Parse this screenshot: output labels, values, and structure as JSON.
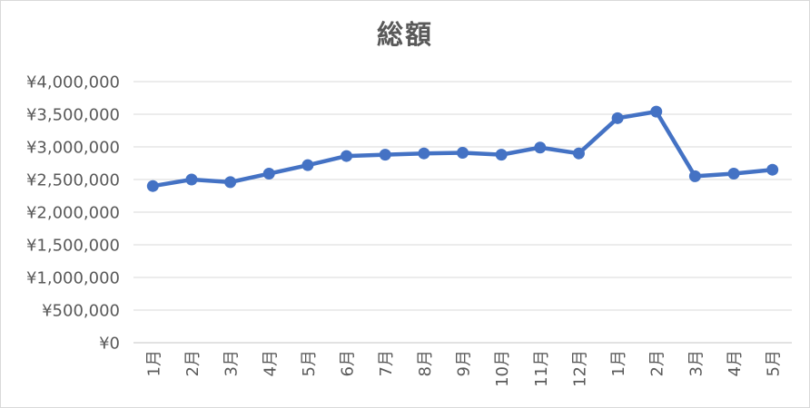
{
  "chart_data": {
    "type": "line",
    "title": "総額",
    "categories": [
      "1月",
      "2月",
      "3月",
      "4月",
      "5月",
      "6月",
      "7月",
      "8月",
      "9月",
      "10月",
      "11月",
      "12月",
      "1月",
      "2月",
      "3月",
      "4月",
      "5月"
    ],
    "series": [
      {
        "name": "総額",
        "values": [
          2400000,
          2500000,
          2460000,
          2590000,
          2720000,
          2860000,
          2880000,
          2900000,
          2910000,
          2880000,
          2990000,
          2900000,
          3440000,
          3540000,
          2550000,
          2590000,
          2650000
        ]
      }
    ],
    "xlabel": "",
    "ylabel": "",
    "ylim": [
      0,
      4000000
    ],
    "y_tick_step": 500000,
    "y_tick_labels": [
      "¥0",
      "¥500,000",
      "¥1,000,000",
      "¥1,500,000",
      "¥2,000,000",
      "¥2,500,000",
      "¥3,000,000",
      "¥3,500,000",
      "¥4,000,000"
    ],
    "grid": true,
    "legend": "none",
    "marker": "circle",
    "x_label_rotation": -90
  },
  "colors": {
    "series": "#4472C4",
    "gridline": "#D9D9D9",
    "axis_line": "#C6C6C6",
    "tick_label": "#595959",
    "title": "#595959",
    "chart_border": "#D9D9D9",
    "background": "#FFFFFF"
  }
}
